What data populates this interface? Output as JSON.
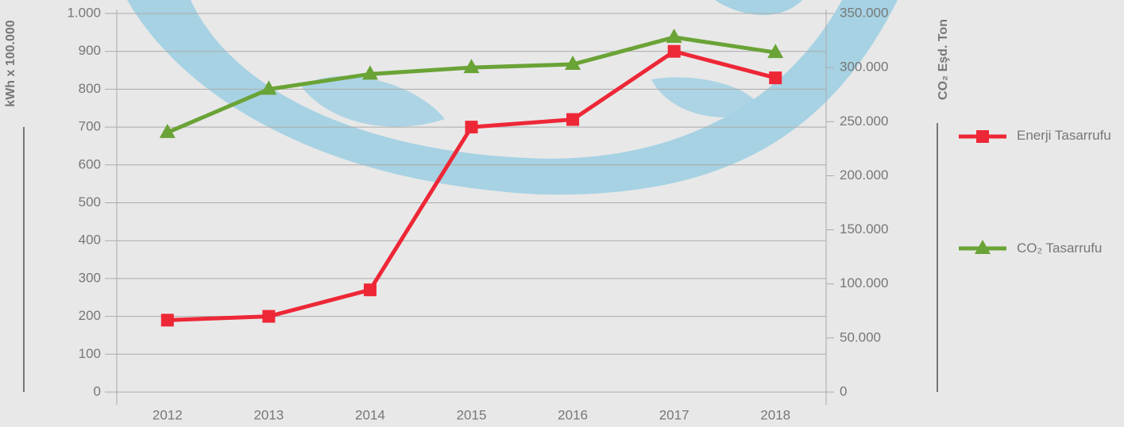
{
  "chart_data": {
    "type": "line",
    "y_label": "kWh x 100.000",
    "y2_label": "CO₂ Eşd. Ton",
    "categories": [
      "2012",
      "2013",
      "2014",
      "2015",
      "2016",
      "2017",
      "2018"
    ],
    "series": [
      {
        "name": "Enerji Tasarrufu",
        "color": "#ee2737",
        "marker": "square",
        "values": [
          190,
          200,
          270,
          700,
          720,
          900,
          830
        ]
      },
      {
        "name": "CO₂ Tasarrufu",
        "color": "#6aa336",
        "marker": "triangle",
        "axis": "y2",
        "values": [
          240000,
          280000,
          294000,
          300000,
          303000,
          328000,
          314000
        ]
      }
    ],
    "ylim": [
      0,
      1000
    ],
    "yticks": [
      0,
      100,
      200,
      300,
      400,
      500,
      600,
      700,
      800,
      900,
      {
        "value": 1000,
        "label": "1.000"
      }
    ],
    "y2lim": [
      0,
      350000
    ],
    "y2ticks": [
      0,
      {
        "value": 50000,
        "label": "50.000"
      },
      {
        "value": 100000,
        "label": "100.000"
      },
      {
        "value": 150000,
        "label": "150.000"
      },
      {
        "value": 200000,
        "label": "200.000"
      },
      {
        "value": 250000,
        "label": "250.000"
      },
      {
        "value": 300000,
        "label": "300.000"
      },
      {
        "value": 350000,
        "label": "350.000"
      }
    ],
    "grid": true,
    "legend": "right"
  }
}
